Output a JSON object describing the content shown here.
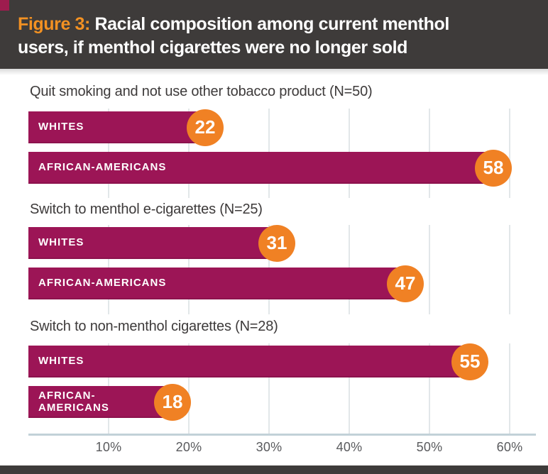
{
  "header": {
    "figure_label": "Figure 3:",
    "title_rest": "Racial composition among current menthol users, if menthol cigarettes were no longer sold",
    "bg_color": "#3E3B3A",
    "figure_label_color": "#F39122",
    "title_color": "#FFFFFF"
  },
  "chart_data": {
    "type": "bar",
    "orientation": "horizontal",
    "unit": "percent",
    "title": "Figure 3: Racial composition among current menthol users, if menthol cigarettes were no longer sold",
    "bar_color": "#9C1556",
    "badge_color": "#F08124",
    "gridline_color": "#E2E7E9",
    "axis_line_color": "#C2D1D8",
    "xlim": [
      0,
      63
    ],
    "grid": true,
    "axis": {
      "tick_labels": [
        "10%",
        "20%",
        "30%",
        "40%",
        "50%",
        "60%"
      ],
      "tick_values": [
        10,
        20,
        30,
        40,
        50,
        60
      ]
    },
    "groups": [
      {
        "label": "Quit smoking and not use other tobacco product (N=50)",
        "bars": [
          {
            "name": "WHITES",
            "value": 22,
            "wrap": false
          },
          {
            "name": "AFRICAN-AMERICANS",
            "value": 58,
            "wrap": false
          }
        ]
      },
      {
        "label": "Switch to menthol e-cigarettes (N=25)",
        "bars": [
          {
            "name": "WHITES",
            "value": 31,
            "wrap": false
          },
          {
            "name": "AFRICAN-AMERICANS",
            "value": 47,
            "wrap": false
          }
        ]
      },
      {
        "label": "Switch to non-menthol cigarettes (N=28)",
        "bars": [
          {
            "name": "WHITES",
            "value": 55,
            "wrap": false
          },
          {
            "name": "AFRICAN-AMERICANS",
            "value": 18,
            "wrap": true
          }
        ]
      }
    ]
  }
}
